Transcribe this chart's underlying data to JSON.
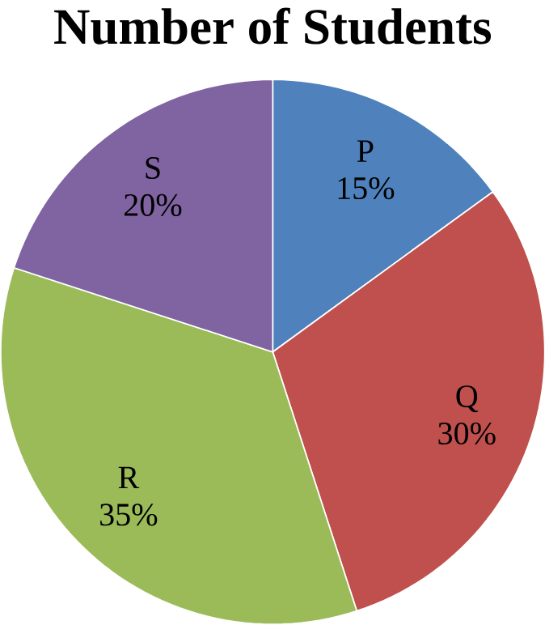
{
  "chart_data": {
    "type": "pie",
    "title": "Number of Students",
    "categories": [
      "P",
      "Q",
      "R",
      "S"
    ],
    "values": [
      15,
      30,
      35,
      20
    ],
    "value_labels": [
      "15%",
      "30%",
      "35%",
      "20%"
    ],
    "colors": [
      "#4f81bd",
      "#c0504d",
      "#9bbb59",
      "#8064a2"
    ]
  }
}
